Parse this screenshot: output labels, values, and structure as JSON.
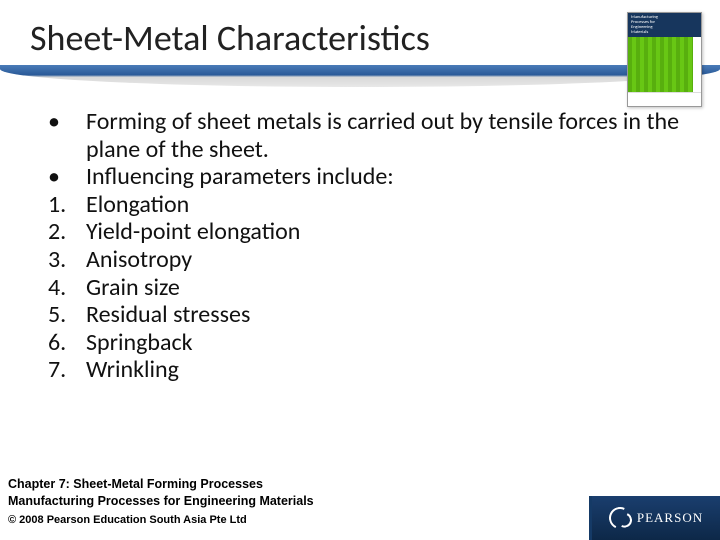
{
  "title": "Sheet-Metal Characteristics",
  "book_cover": {
    "line1": "Manufacturing",
    "line2": "Processes for",
    "line3": "Engineering",
    "line4": "Materials"
  },
  "list": [
    {
      "marker": "•",
      "text": "Forming of sheet metals is carried out by tensile forces in the plane of the sheet."
    },
    {
      "marker": "•",
      "text": "Influencing parameters include:"
    },
    {
      "marker": "1.",
      "text": "Elongation"
    },
    {
      "marker": "2.",
      "text": "Yield-point elongation"
    },
    {
      "marker": "3.",
      "text": "Anisotropy"
    },
    {
      "marker": "4.",
      "text": "Grain size"
    },
    {
      "marker": "5.",
      "text": "Residual stresses"
    },
    {
      "marker": "6.",
      "text": "Springback"
    },
    {
      "marker": "7.",
      "text": "Wrinkling"
    }
  ],
  "footer": {
    "chapter": "Chapter 7: Sheet-Metal Forming Processes",
    "book": "Manufacturing Processes for Engineering Materials",
    "copyright": "© 2008 Pearson Education South Asia Pte Ltd"
  },
  "brand": "PEARSON",
  "colors": {
    "header_blue": "#2a5a98",
    "pearson_bar": "#0d2848",
    "text": "#111111",
    "background": "#ffffff"
  }
}
